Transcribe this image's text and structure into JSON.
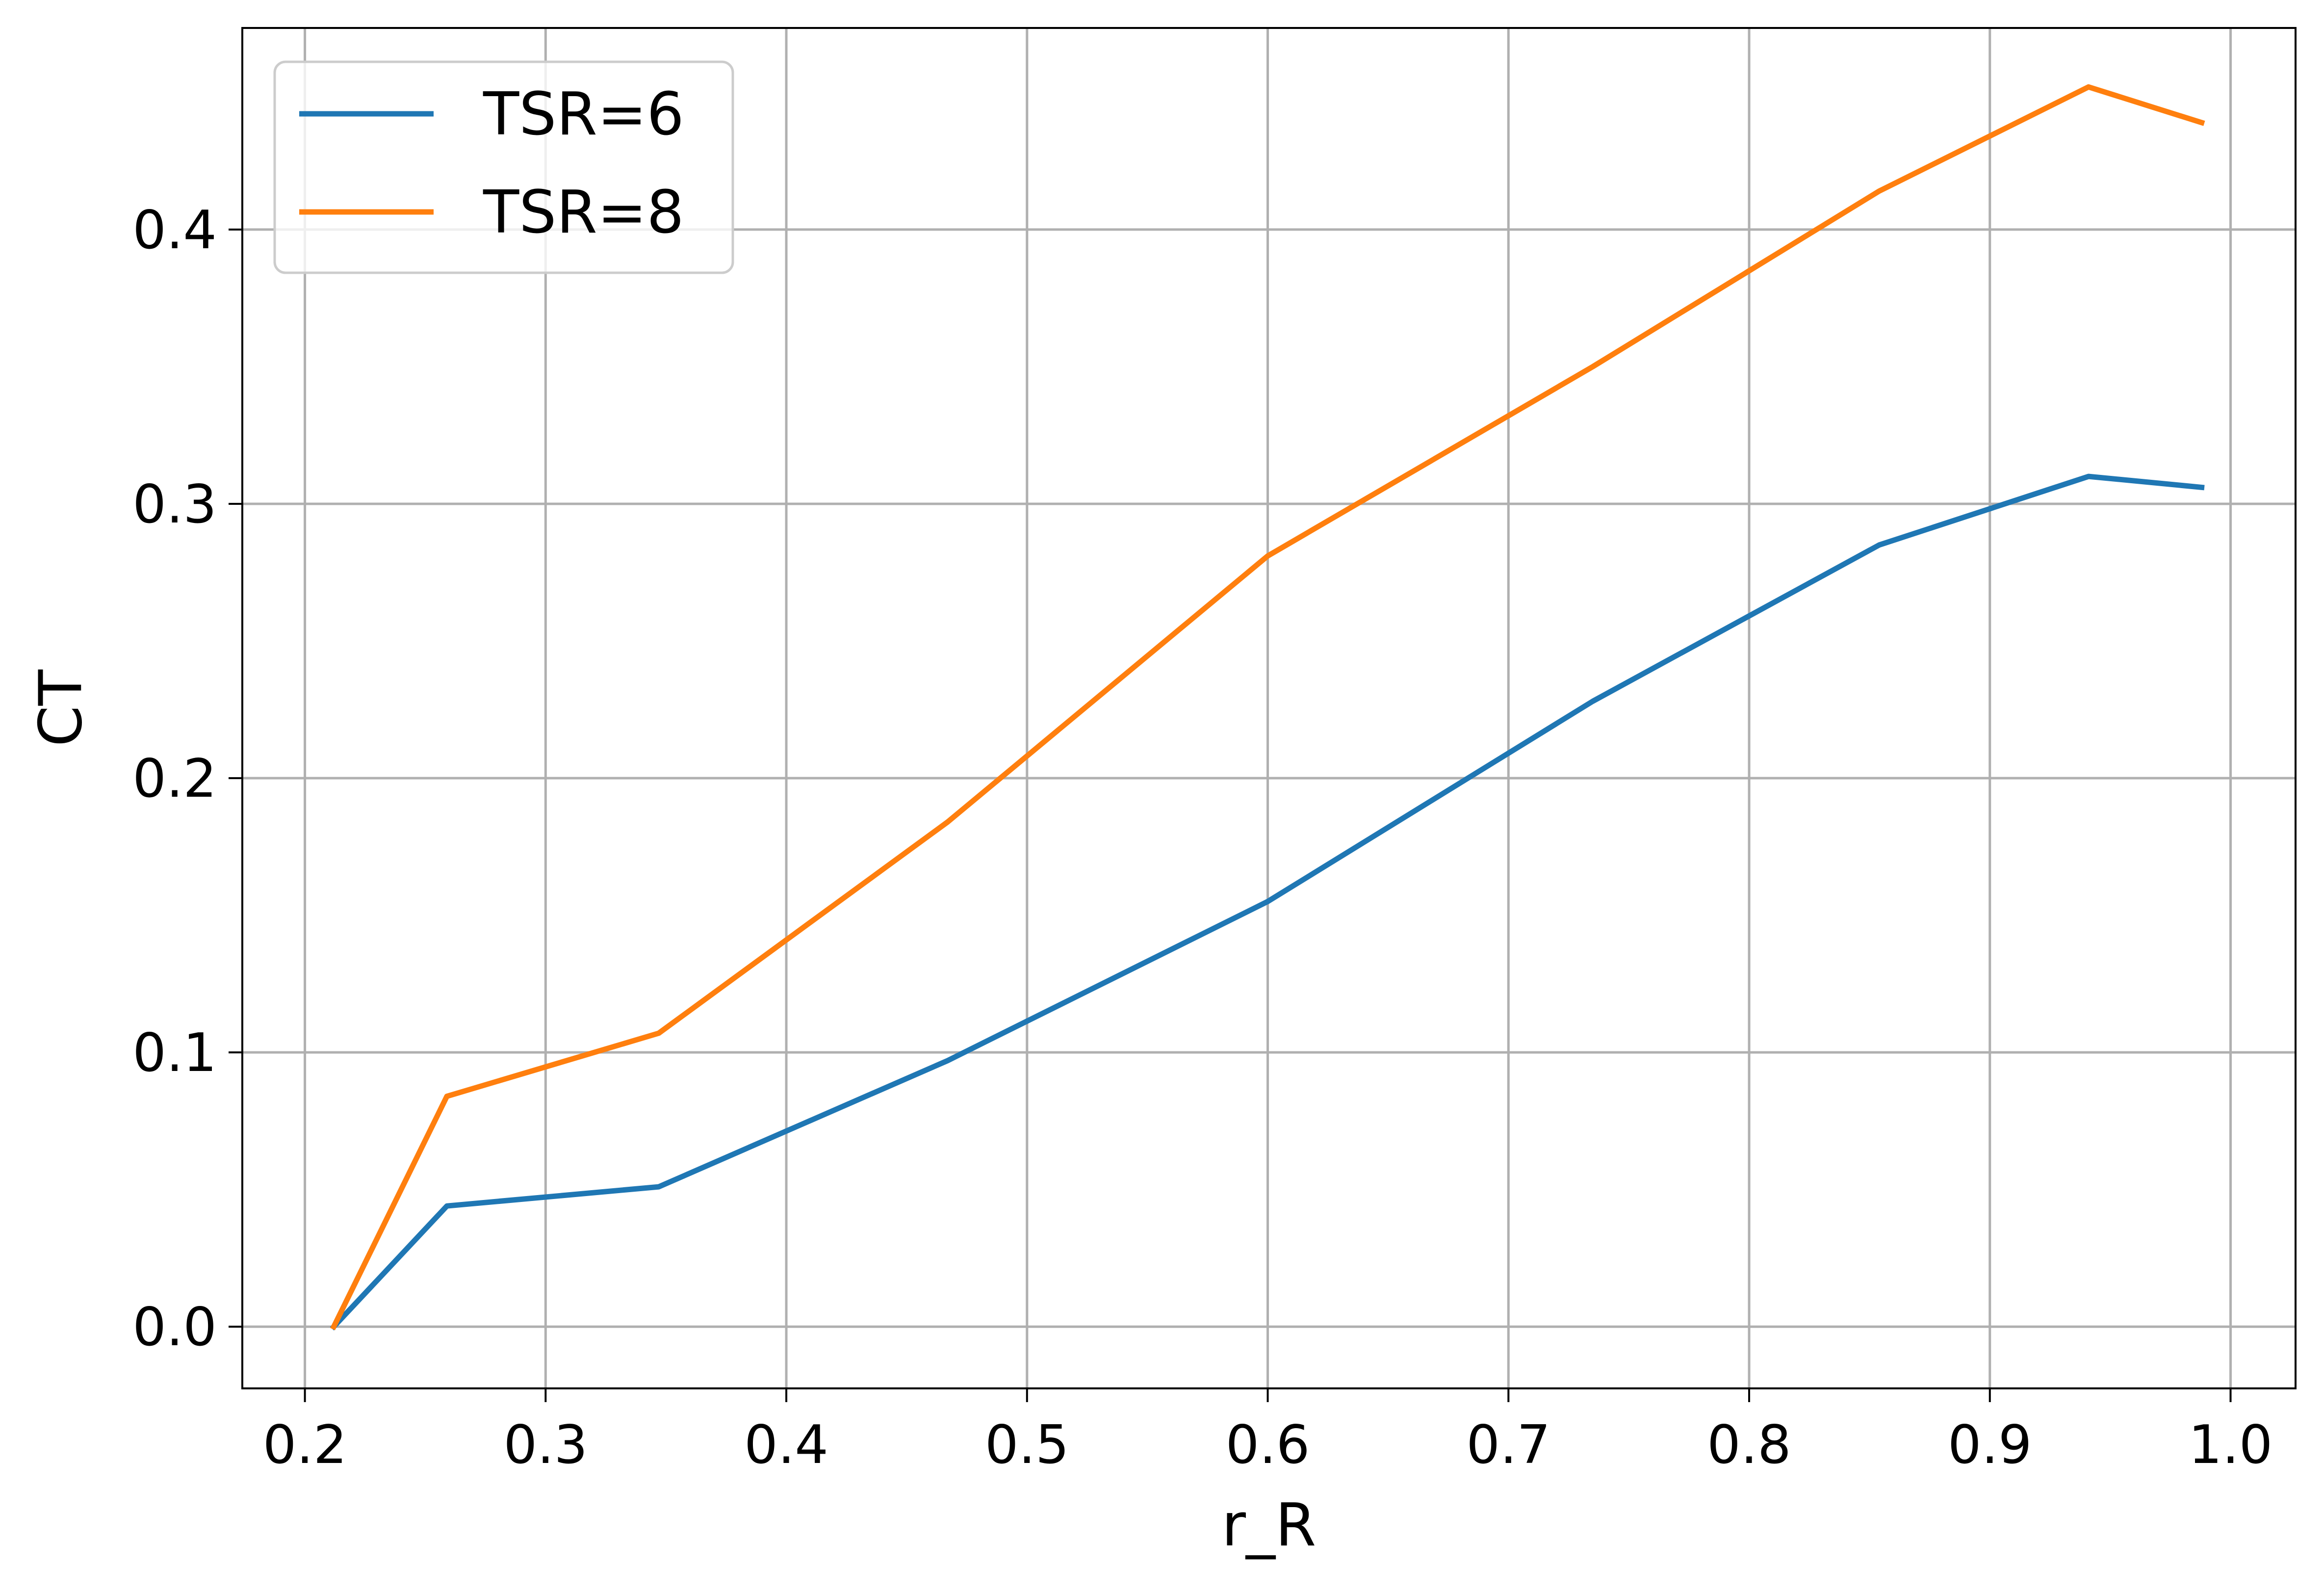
{
  "chart_data": {
    "type": "line",
    "title": "",
    "xlabel": "r_R",
    "ylabel": "CT",
    "xlim": [
      0.174,
      1.027
    ],
    "ylim": [
      -0.0225,
      0.4735
    ],
    "xticks": [
      0.2,
      0.3,
      0.4,
      0.5,
      0.6,
      0.7,
      0.8,
      0.9,
      1.0
    ],
    "xtick_labels": [
      "0.2",
      "0.3",
      "0.4",
      "0.5",
      "0.6",
      "0.7",
      "0.8",
      "0.9",
      "1.0"
    ],
    "yticks": [
      0.0,
      0.1,
      0.2,
      0.3,
      0.4
    ],
    "ytick_labels": [
      "0.0",
      "0.1",
      "0.2",
      "0.3",
      "0.4"
    ],
    "grid": true,
    "legend_position": "top-left",
    "series": [
      {
        "name": "TSR=6",
        "color": "#1f77b4",
        "x": [
          0.212,
          0.259,
          0.347,
          0.467,
          0.6,
          0.735,
          0.854,
          0.941,
          0.988
        ],
        "y": [
          0.0,
          0.044,
          0.051,
          0.097,
          0.155,
          0.228,
          0.285,
          0.31,
          0.306
        ]
      },
      {
        "name": "TSR=8",
        "color": "#ff7f0e",
        "x": [
          0.212,
          0.259,
          0.347,
          0.467,
          0.6,
          0.735,
          0.854,
          0.941,
          0.988
        ],
        "y": [
          0.0,
          0.084,
          0.107,
          0.184,
          0.281,
          0.35,
          0.414,
          0.452,
          0.439
        ]
      }
    ]
  }
}
